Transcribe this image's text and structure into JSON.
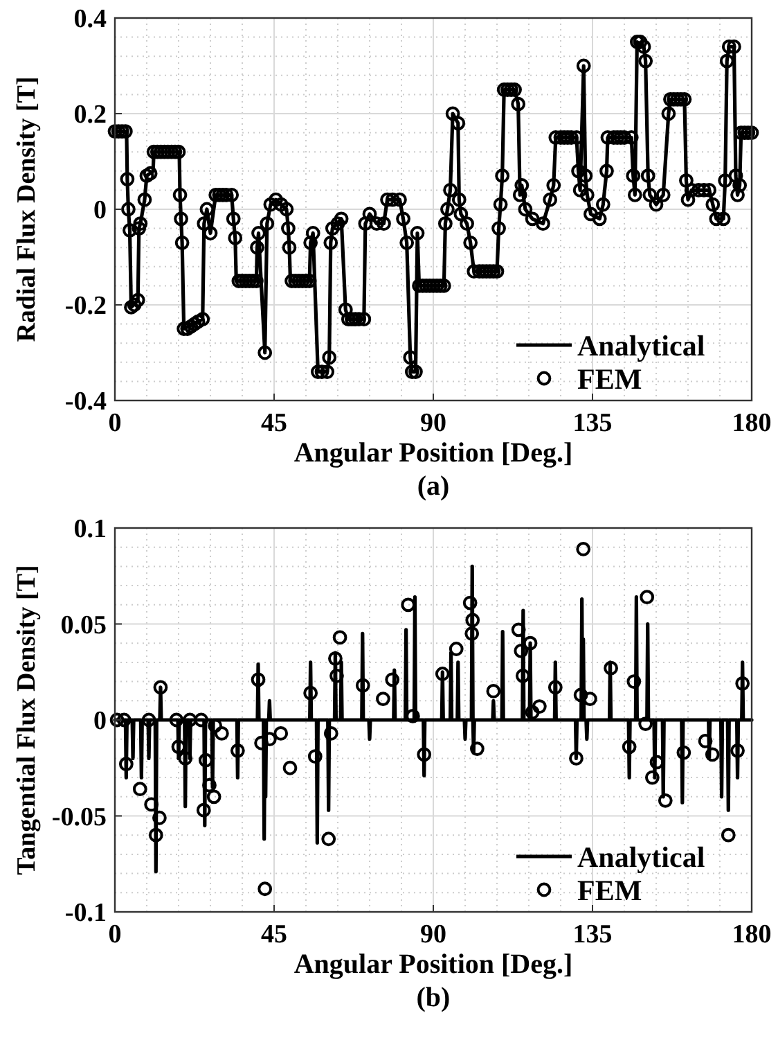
{
  "chart_data": [
    {
      "type": "line",
      "xlabel": "Angular Position [Deg.]",
      "ylabel": "Radial Flux Density [T]",
      "annotations": [
        "(a)"
      ],
      "xlim": [
        0,
        180
      ],
      "xticks": [
        0,
        45,
        90,
        135,
        180
      ],
      "ylim": [
        -0.4,
        0.4
      ],
      "yticks": [
        -0.4,
        -0.2,
        0,
        0.2,
        0.4
      ],
      "grid": true,
      "legend": "bottom right",
      "series": [
        {
          "name": "Analytical",
          "color": "#000000",
          "line_style": "solid",
          "x": [
            0,
            3.3,
            3.5,
            3.8,
            4.2,
            4.6,
            6.5,
            6.8,
            7.2,
            8.4,
            9,
            10.8,
            11,
            18.2,
            18.4,
            18.7,
            19,
            19.5,
            24.8,
            25.2,
            26,
            27,
            28.5,
            33,
            33.5,
            34,
            34.3,
            40,
            40.2,
            40.6,
            42.4,
            43,
            44,
            45.5,
            48.5,
            49,
            49.3,
            49.6,
            55,
            55.3,
            56,
            57.4,
            60,
            60.6,
            61,
            61.5,
            64,
            65.2,
            66,
            70.4,
            70.8,
            72,
            74,
            76,
            77,
            80.5,
            81.5,
            82.5,
            83.5,
            84,
            85,
            85.5,
            86,
            93,
            93.4,
            94,
            94.8,
            95.5,
            97,
            97.3,
            97.8,
            99.5,
            100.5,
            101.5,
            108,
            108.5,
            109,
            109.5,
            110,
            113,
            114,
            114.5,
            115,
            116,
            118,
            121,
            123,
            124,
            124.6,
            130.5,
            131,
            131.5,
            132.5,
            133,
            133.5,
            134.5,
            137,
            138,
            139,
            139.3,
            146,
            146.5,
            147,
            147.6,
            149.5,
            150,
            150.7,
            151.2,
            153,
            155,
            156.5,
            157,
            161,
            161.5,
            162,
            163,
            168,
            169,
            170,
            172,
            172.5,
            173,
            173.6,
            175,
            175.5,
            176,
            176.6,
            177,
            180
          ],
          "values": [
            0.163,
            0.163,
            0.063,
            0,
            -0.044,
            -0.205,
            -0.19,
            -0.04,
            -0.03,
            0.02,
            0.07,
            0.08,
            0.12,
            0.12,
            0.03,
            -0.02,
            -0.07,
            -0.25,
            -0.23,
            -0.03,
            0,
            -0.05,
            0.03,
            0.03,
            -0.02,
            -0.06,
            -0.15,
            -0.15,
            -0.08,
            -0.05,
            -0.3,
            -0.03,
            0.01,
            0.02,
            0,
            -0.04,
            -0.08,
            -0.15,
            -0.15,
            -0.07,
            -0.05,
            -0.34,
            -0.34,
            -0.31,
            -0.07,
            -0.04,
            -0.02,
            -0.21,
            -0.23,
            -0.23,
            -0.03,
            -0.01,
            -0.03,
            -0.03,
            0.02,
            0.02,
            -0.02,
            -0.07,
            -0.31,
            -0.34,
            -0.34,
            -0.05,
            -0.16,
            -0.16,
            -0.03,
            0,
            0.04,
            0.2,
            0.18,
            0.02,
            -0.01,
            -0.03,
            -0.07,
            -0.13,
            -0.13,
            -0.04,
            0.01,
            0.07,
            0.25,
            0.25,
            0.22,
            0.03,
            0.05,
            0,
            -0.02,
            -0.03,
            0.02,
            0.05,
            0.15,
            0.15,
            0.08,
            0.04,
            0.3,
            0.07,
            0.03,
            -0.01,
            -0.02,
            0.01,
            0.08,
            0.15,
            0.15,
            0.07,
            0.03,
            0.35,
            0.34,
            0.31,
            0.07,
            0.03,
            0.01,
            0.03,
            0.2,
            0.23,
            0.23,
            0.06,
            0.02,
            0.04,
            0.04,
            0.01,
            -0.02,
            -0.02,
            0.06,
            0.31,
            0.34,
            0.34,
            0.07,
            0.03,
            0.05,
            0.16,
            0.16
          ]
        },
        {
          "name": "FEM",
          "type": "scatter",
          "color": "#000000",
          "marker": "circle",
          "x": [
            0,
            1,
            2,
            3,
            3.5,
            3.8,
            4.2,
            4.6,
            5.5,
            6.5,
            6.8,
            7.2,
            8.4,
            9,
            10,
            11,
            12,
            13,
            14,
            15,
            16,
            17,
            18,
            18.4,
            18.7,
            19,
            19.5,
            20.5,
            21.5,
            22.5,
            23.5,
            24.8,
            25.2,
            26,
            27,
            28.5,
            29.5,
            30.5,
            31.5,
            33,
            33.5,
            34,
            35,
            36,
            37,
            38,
            39,
            40,
            40.2,
            40.6,
            42.4,
            43,
            44,
            45.5,
            47,
            48.5,
            49,
            49.3,
            50,
            51,
            52,
            53,
            54,
            55,
            55.3,
            56,
            57.4,
            58.5,
            60,
            60.6,
            61,
            61.5,
            63,
            64,
            65.2,
            66,
            67,
            68,
            69,
            70.4,
            70.8,
            72,
            74,
            76,
            77,
            78.5,
            80.5,
            81.5,
            82.5,
            83.5,
            84,
            85,
            85.5,
            86,
            87,
            88,
            89,
            90,
            91,
            92,
            93,
            93.4,
            94,
            94.8,
            95.5,
            97,
            97.3,
            97.8,
            99.5,
            100.5,
            101.5,
            103,
            104,
            105,
            106,
            107,
            108,
            108.5,
            109,
            109.5,
            110,
            111,
            112,
            113,
            114,
            114.5,
            115,
            116,
            118,
            121,
            123,
            124,
            124.6,
            126,
            127,
            128,
            129,
            130.5,
            131,
            131.5,
            132.5,
            133,
            133.5,
            134.5,
            137,
            138,
            139,
            139.3,
            141,
            142,
            143,
            144,
            146,
            146.5,
            147,
            147.6,
            148.5,
            149.5,
            150,
            150.7,
            151.2,
            153,
            155,
            156.5,
            157,
            158,
            159,
            160,
            161,
            161.5,
            162,
            163,
            165,
            166.5,
            168,
            169,
            170,
            172,
            172.5,
            173,
            173.6,
            175,
            175.5,
            176,
            176.6,
            177,
            178,
            179,
            180
          ],
          "values": [
            0.163,
            0.163,
            0.163,
            0.163,
            0.063,
            0,
            -0.044,
            -0.205,
            -0.2,
            -0.19,
            -0.04,
            -0.03,
            0.02,
            0.07,
            0.075,
            0.12,
            0.12,
            0.12,
            0.12,
            0.12,
            0.12,
            0.12,
            0.12,
            0.03,
            -0.02,
            -0.07,
            -0.25,
            -0.25,
            -0.245,
            -0.24,
            -0.235,
            -0.23,
            -0.03,
            0,
            -0.05,
            0.03,
            0.03,
            0.03,
            0.03,
            0.03,
            -0.02,
            -0.06,
            -0.15,
            -0.15,
            -0.15,
            -0.15,
            -0.15,
            -0.15,
            -0.08,
            -0.05,
            -0.3,
            -0.03,
            0.01,
            0.02,
            0.01,
            0,
            -0.04,
            -0.08,
            -0.15,
            -0.15,
            -0.15,
            -0.15,
            -0.15,
            -0.15,
            -0.07,
            -0.05,
            -0.34,
            -0.34,
            -0.34,
            -0.31,
            -0.07,
            -0.04,
            -0.03,
            -0.02,
            -0.21,
            -0.23,
            -0.23,
            -0.23,
            -0.23,
            -0.23,
            -0.03,
            -0.01,
            -0.03,
            -0.03,
            0.02,
            0.02,
            0.02,
            -0.02,
            -0.07,
            -0.31,
            -0.34,
            -0.34,
            -0.05,
            -0.16,
            -0.16,
            -0.16,
            -0.16,
            -0.16,
            -0.16,
            -0.16,
            -0.16,
            -0.03,
            0,
            0.04,
            0.2,
            0.18,
            0.02,
            -0.01,
            -0.03,
            -0.07,
            -0.13,
            -0.13,
            -0.13,
            -0.13,
            -0.13,
            -0.13,
            -0.13,
            -0.04,
            0.01,
            0.07,
            0.25,
            0.25,
            0.25,
            0.25,
            0.22,
            0.03,
            0.05,
            0,
            -0.02,
            -0.03,
            0.02,
            0.05,
            0.15,
            0.15,
            0.15,
            0.15,
            0.15,
            0.15,
            0.08,
            0.04,
            0.3,
            0.07,
            0.03,
            -0.01,
            -0.02,
            0.01,
            0.08,
            0.15,
            0.15,
            0.15,
            0.15,
            0.15,
            0.15,
            0.07,
            0.03,
            0.35,
            0.35,
            0.34,
            0.31,
            0.07,
            0.03,
            0.01,
            0.03,
            0.2,
            0.23,
            0.23,
            0.23,
            0.23,
            0.23,
            0.06,
            0.02,
            0.04,
            0.04,
            0.04,
            0.04,
            0.01,
            -0.02,
            -0.02,
            0.06,
            0.31,
            0.34,
            0.34,
            0.07,
            0.03,
            0.05,
            0.16,
            0.16,
            0.16,
            0.16
          ]
        }
      ]
    },
    {
      "type": "line",
      "xlabel": "Angular Position [Deg.]",
      "ylabel": "Tangential Flux Density [T]",
      "annotations": [
        "(b)"
      ],
      "xlim": [
        0,
        180
      ],
      "xticks": [
        0,
        45,
        90,
        135,
        180
      ],
      "ylim": [
        -0.1,
        0.1
      ],
      "yticks": [
        -0.1,
        -0.05,
        0,
        0.05,
        0.1
      ],
      "grid": true,
      "legend": "bottom right",
      "series": [
        {
          "name": "Analytical",
          "color": "#000000",
          "line_style": "solid",
          "x": [
            0,
            3,
            3.2,
            3.4,
            4.9,
            5.1,
            5.3,
            7.3,
            7.5,
            7.7,
            9.4,
            9.6,
            9.8,
            11.4,
            11.6,
            11.8,
            12.7,
            12.9,
            13.1,
            17.8,
            18,
            18.2,
            19.7,
            19.9,
            20.1,
            21,
            21.2,
            21.4,
            25.2,
            25.4,
            25.6,
            27.4,
            27.6,
            27.8,
            34.5,
            34.7,
            34.9,
            40.3,
            40.5,
            40.7,
            42,
            42.2,
            42.4,
            42.6,
            42.8,
            43.5,
            43.7,
            43.9,
            55.1,
            55.3,
            55.5,
            57,
            57.2,
            57.4,
            60.2,
            60.4,
            60.6,
            62.1,
            62.3,
            62.5,
            63.8,
            64,
            64.2,
            69.8,
            70,
            70.2,
            71.8,
            72,
            72.2,
            78.8,
            79,
            79.2,
            82.1,
            82.3,
            82.5,
            84.6,
            84.8,
            85,
            87.2,
            87.4,
            87.6,
            92.4,
            92.6,
            92.8,
            94.8,
            95,
            95.2,
            96.8,
            97,
            97.2,
            98.8,
            99,
            99.2,
            100.8,
            101,
            101.2,
            101.4,
            101.6,
            106.8,
            107,
            107.2,
            109.4,
            109.6,
            109.8,
            115.2,
            115.4,
            115.6,
            117.2,
            117.4,
            117.6,
            124.3,
            124.5,
            124.7,
            130.2,
            130.4,
            130.6,
            131.8,
            132,
            132.2,
            132.4,
            132.6,
            133.2,
            133.4,
            133.6,
            139.8,
            140,
            140.2,
            145.2,
            145.4,
            145.6,
            147.2,
            147.4,
            147.6,
            150.4,
            150.6,
            150.8,
            152.4,
            152.6,
            152.8,
            154.8,
            155,
            155.2,
            160.2,
            160.4,
            160.6,
            167.8,
            168,
            168.2,
            171.3,
            171.5,
            171.7,
            173.2,
            173.4,
            173.6,
            175.8,
            176,
            176.2,
            177.2,
            177.4,
            177.6,
            180
          ],
          "values": [
            0,
            0,
            -0.03,
            0,
            0,
            -0.02,
            0,
            0,
            -0.03,
            0,
            0,
            -0.02,
            0,
            0,
            -0.079,
            0,
            0,
            0.017,
            0,
            0,
            -0.02,
            0,
            0,
            -0.045,
            0,
            0,
            -0.02,
            0,
            0,
            -0.055,
            0,
            0,
            -0.035,
            0,
            0,
            -0.03,
            0,
            0,
            0.029,
            0,
            0,
            -0.062,
            0,
            -0.04,
            0,
            0,
            0.01,
            0,
            0,
            0.03,
            0,
            0,
            -0.064,
            0,
            0,
            -0.047,
            0,
            0,
            0.035,
            0,
            0,
            0.03,
            0,
            0,
            0.045,
            0,
            0,
            -0.01,
            0,
            0,
            0.026,
            0,
            0,
            0.047,
            0,
            0,
            0.064,
            0,
            0,
            -0.029,
            0,
            0,
            0.025,
            0,
            0,
            0.035,
            0,
            0,
            0.03,
            0,
            0,
            -0.01,
            0,
            0,
            0.08,
            0,
            -0.017,
            0,
            0,
            0.01,
            0,
            0,
            0.046,
            0,
            0,
            0.057,
            0,
            0,
            0.04,
            0,
            0,
            0.03,
            0,
            0,
            -0.02,
            0,
            0,
            0.063,
            0,
            0.042,
            0,
            0,
            -0.01,
            0,
            0,
            0.03,
            0,
            0,
            -0.03,
            0,
            0,
            0.064,
            0,
            0,
            0.05,
            0,
            0,
            -0.03,
            0,
            0,
            -0.04,
            0,
            0,
            -0.043,
            0,
            0,
            -0.02,
            0,
            0,
            -0.04,
            0,
            0,
            -0.047,
            0,
            0,
            -0.03,
            0,
            0,
            0.03,
            0,
            0
          ]
        },
        {
          "name": "FEM",
          "type": "scatter",
          "color": "#000000",
          "marker": "circle",
          "x": [
            0.6,
            2.6,
            3.2,
            7.1,
            9.6,
            10.3,
            11.6,
            12.6,
            12.9,
            17.4,
            18,
            19.9,
            21.2,
            24.4,
            25.1,
            25.7,
            26.7,
            28,
            28.3,
            30.2,
            34.7,
            40.5,
            41.4,
            42.4,
            43.7,
            46.9,
            49.5,
            55.3,
            56.6,
            60.4,
            61.1,
            62.3,
            62.7,
            63.6,
            70.1,
            75.8,
            78.4,
            82.9,
            84.2,
            87.4,
            92.6,
            96.5,
            100.4,
            101.1,
            100.9,
            102.4,
            107,
            114.1,
            114.8,
            117.4,
            115.3,
            118,
            120,
            124.5,
            130.4,
            132.4,
            131.7,
            134.3,
            140.2,
            145.4,
            146.7,
            150.4,
            150,
            151.9,
            153.2,
            155.6,
            160.8,
            166.9,
            168.9,
            173.4,
            176,
            177.4
          ],
          "values": [
            0,
            0,
            -0.023,
            -0.036,
            0,
            -0.044,
            -0.06,
            -0.051,
            0.017,
            0,
            -0.014,
            -0.02,
            0,
            0,
            -0.047,
            -0.021,
            -0.034,
            -0.04,
            -0.003,
            -0.007,
            -0.016,
            0.021,
            -0.012,
            -0.088,
            -0.01,
            -0.007,
            -0.025,
            0.014,
            -0.019,
            -0.062,
            -0.007,
            0.032,
            0.023,
            0.043,
            0.018,
            0.011,
            0.021,
            0.06,
            0.002,
            -0.018,
            0.024,
            0.037,
            0.061,
            0.052,
            0.045,
            -0.015,
            0.015,
            0.047,
            0.036,
            0.04,
            0.023,
            0.004,
            0.007,
            0.017,
            -0.02,
            0.089,
            0.013,
            0.011,
            0.027,
            -0.014,
            0.02,
            0.064,
            -0.002,
            -0.03,
            -0.022,
            -0.042,
            -0.017,
            -0.011,
            -0.018,
            -0.06,
            -0.016,
            0.019
          ]
        }
      ]
    }
  ]
}
